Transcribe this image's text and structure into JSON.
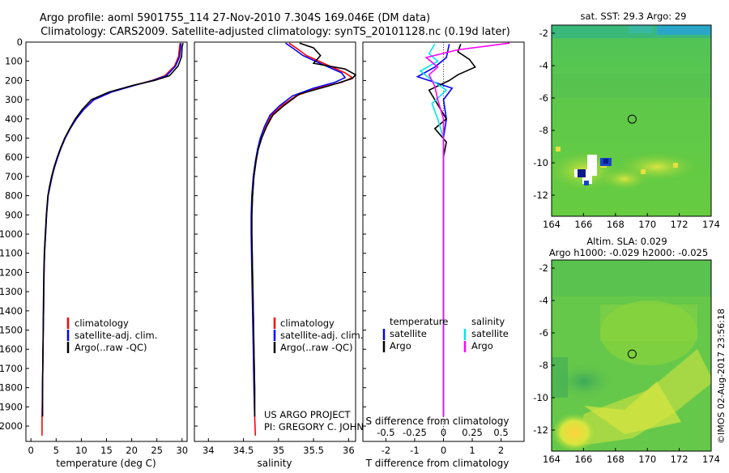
{
  "header": {
    "title_line1": "Argo profile: aoml 5901755_114 27-Nov-2010 7.304S 169.046E (DM data)",
    "title_line2": "Climatology: CARS2009. Satellite-adjusted climatology: synTS_20101128.nc (0.19d later)"
  },
  "colors": {
    "climatology": "#ff0000",
    "satellite": "#0000ff",
    "argo": "#000000",
    "sat_salinity": "#00e5ee",
    "argo_salinity": "#ff00ff"
  },
  "credits": {
    "line1": "US ARGO PROJECT",
    "line2": "PI: GREGORY C. JOHNSON"
  },
  "footer": {
    "stamp": "©IMOS 02-Aug-2017 23:56:18"
  },
  "chart_data": [
    {
      "type": "line",
      "title": "",
      "xlabel": "temperature (deg C)",
      "ylabel": "",
      "xlim": [
        -1,
        31
      ],
      "ylim": [
        2080,
        0
      ],
      "xticks": [
        0,
        5,
        10,
        15,
        20,
        25,
        30
      ],
      "yticks": [
        0,
        100,
        200,
        300,
        400,
        500,
        600,
        700,
        800,
        900,
        1000,
        1100,
        1200,
        1300,
        1400,
        1500,
        1600,
        1700,
        1800,
        1900,
        2000
      ],
      "legend": [
        "climatology",
        "satellite-adj. clim.",
        "Argo(..raw -QC)"
      ],
      "legend_position": "lower-left",
      "series": [
        {
          "name": "climatology",
          "color": "#ff0000",
          "x": [
            29.6,
            29.5,
            29.3,
            28.5,
            26.6,
            24,
            20.5,
            16,
            12.5,
            10.5,
            9,
            7.8,
            6.8,
            6,
            5.3,
            4.7,
            4.2,
            3.8,
            3.4,
            3.1,
            2.9,
            2.7,
            2.6,
            2.5,
            2.4,
            2.3,
            2.2,
            2.2,
            2.2
          ],
          "y": [
            5,
            25,
            75,
            125,
            175,
            200,
            225,
            260,
            300,
            350,
            400,
            450,
            500,
            550,
            600,
            650,
            700,
            750,
            800,
            900,
            1000,
            1100,
            1200,
            1400,
            1600,
            1800,
            1950,
            2000,
            2050
          ]
        },
        {
          "name": "satellite-adj. clim.",
          "color": "#0000ff",
          "x": [
            29.8,
            29.7,
            29.5,
            28.7,
            26.9,
            24.2,
            20.6,
            16,
            12.5,
            10.5,
            9,
            7.8,
            6.8,
            6,
            5.3,
            4.7,
            4.2,
            3.8,
            3.4,
            3.1,
            2.9,
            2.7,
            2.6,
            2.5,
            2.4,
            2.3,
            2.3
          ],
          "y": [
            5,
            25,
            75,
            125,
            175,
            200,
            225,
            260,
            300,
            350,
            400,
            450,
            500,
            550,
            600,
            650,
            700,
            750,
            800,
            900,
            1000,
            1100,
            1200,
            1400,
            1600,
            1800,
            1950
          ]
        },
        {
          "name": "Argo(..raw -QC)",
          "color": "#000000",
          "x": [
            30.2,
            30,
            29.9,
            29.2,
            27.5,
            24.5,
            20.3,
            15.5,
            12,
            10.2,
            8.8,
            7.7,
            6.7,
            5.9,
            5.2,
            4.6,
            4.1,
            3.7,
            3.35,
            3.05,
            2.85,
            2.65,
            2.55,
            2.45,
            2.4,
            2.3,
            2.3
          ],
          "y": [
            5,
            25,
            75,
            125,
            175,
            200,
            225,
            260,
            300,
            350,
            400,
            450,
            500,
            550,
            600,
            650,
            700,
            750,
            800,
            900,
            1000,
            1100,
            1200,
            1400,
            1600,
            1800,
            1950
          ]
        }
      ]
    },
    {
      "type": "line",
      "title": "",
      "xlabel": "salinity",
      "ylabel": "",
      "xlim": [
        33.8,
        36.1
      ],
      "ylim": [
        2080,
        0
      ],
      "xticks": [
        34,
        34.5,
        35,
        35.5,
        36
      ],
      "legend": [
        "climatology",
        "satellite-adj. clim.",
        "Argo(..raw -QC)"
      ],
      "legend_position": "lower-right",
      "series": [
        {
          "name": "climatology",
          "color": "#ff0000",
          "x": [
            35.15,
            35.25,
            35.4,
            35.7,
            35.95,
            36.05,
            35.9,
            35.55,
            35.25,
            35.05,
            34.9,
            34.82,
            34.76,
            34.71,
            34.68,
            34.65,
            34.63,
            34.62,
            34.62,
            34.63,
            34.64,
            34.65,
            34.66,
            34.66,
            34.67
          ],
          "y": [
            5,
            30,
            70,
            120,
            160,
            185,
            210,
            240,
            280,
            330,
            380,
            440,
            500,
            560,
            620,
            700,
            800,
            900,
            1000,
            1200,
            1400,
            1600,
            1800,
            1950,
            2050
          ]
        },
        {
          "name": "satellite-adj. clim.",
          "color": "#0000ff",
          "x": [
            35.1,
            35.2,
            35.35,
            35.65,
            35.9,
            35.95,
            35.8,
            35.5,
            35.2,
            35.02,
            34.88,
            34.8,
            34.74,
            34.7,
            34.67,
            34.64,
            34.62,
            34.61,
            34.61,
            34.62,
            34.63,
            34.64,
            34.65,
            34.66
          ],
          "y": [
            5,
            30,
            70,
            120,
            160,
            185,
            210,
            240,
            280,
            330,
            380,
            440,
            500,
            560,
            620,
            700,
            800,
            900,
            1000,
            1200,
            1400,
            1600,
            1800,
            1950
          ]
        },
        {
          "name": "Argo(..raw -QC)",
          "color": "#000000",
          "x": [
            35.3,
            35.5,
            35.6,
            35.5,
            35.95,
            36.1,
            36.05,
            35.7,
            35.3,
            35.08,
            34.92,
            34.83,
            34.76,
            34.71,
            34.68,
            34.65,
            34.63,
            34.62,
            34.62,
            34.63,
            34.64,
            34.65,
            34.66,
            34.66
          ],
          "y": [
            5,
            30,
            70,
            110,
            140,
            170,
            190,
            230,
            270,
            330,
            380,
            440,
            500,
            560,
            620,
            700,
            800,
            900,
            1000,
            1200,
            1400,
            1600,
            1800,
            1950
          ]
        }
      ]
    },
    {
      "type": "line",
      "title": "",
      "xlabel": "T difference from climatology",
      "xlabel_top": "S difference from climatology",
      "ylabel": "",
      "xlim": [
        -2.8,
        2.8
      ],
      "ylim": [
        2080,
        0
      ],
      "xticks": [
        -2,
        -1,
        0,
        1,
        2
      ],
      "xticks_top": [
        "-0.5",
        "-0.25",
        "0",
        "0.25",
        "0.5"
      ],
      "legend_groups": [
        {
          "heading": "temperature",
          "items": [
            "satellite",
            "Argo"
          ]
        },
        {
          "heading": "salinity",
          "items": [
            "satellite",
            "Argo"
          ]
        }
      ],
      "series": [
        {
          "name": "temperature satellite",
          "color": "#0000ff",
          "x": [
            0.2,
            0.1,
            -0.3,
            -0.9,
            -0.3,
            0.3,
            0,
            0.1,
            0,
            0,
            0,
            0,
            0,
            0,
            0
          ],
          "y": [
            10,
            80,
            130,
            180,
            210,
            240,
            300,
            400,
            500,
            600,
            800,
            1000,
            1400,
            1800,
            1950
          ]
        },
        {
          "name": "temperature Argo",
          "color": "#000000",
          "x": [
            0.6,
            0.5,
            0.9,
            1.1,
            0.5,
            0.2,
            -0.5,
            -0.3,
            -0.1,
            0.1,
            -0.3,
            0.1,
            0,
            0,
            0,
            0,
            0
          ],
          "y": [
            10,
            50,
            90,
            130,
            170,
            200,
            250,
            300,
            350,
            400,
            450,
            520,
            600,
            800,
            1200,
            1600,
            1950
          ]
        },
        {
          "name": "salinity satellite",
          "color": "#00e5ee",
          "x": [
            -0.3,
            -0.5,
            -0.2,
            -0.8,
            -0.4,
            0.1,
            -0.4,
            -0.2,
            0,
            0,
            0,
            0
          ],
          "y": [
            10,
            60,
            100,
            150,
            200,
            250,
            320,
            400,
            500,
            700,
            1200,
            1950
          ]
        },
        {
          "name": "salinity Argo",
          "color": "#ff00ff",
          "x": [
            2.3,
            0.5,
            -0.6,
            -0.2,
            -0.5,
            -0.3,
            -0.2,
            0,
            0,
            0,
            0
          ],
          "y": [
            5,
            40,
            80,
            130,
            170,
            230,
            300,
            400,
            500,
            800,
            1950
          ]
        }
      ]
    },
    {
      "type": "heatmap",
      "title": "sat. SST: 29.3 Argo: 29",
      "xlabel": "",
      "ylabel": "",
      "xlim": [
        164,
        174
      ],
      "ylim": [
        -13.3,
        -1.5
      ],
      "xticks": [
        164,
        166,
        168,
        170,
        172,
        174
      ],
      "yticks": [
        -2,
        -4,
        -6,
        -8,
        -10,
        -12
      ],
      "marker": {
        "lon": 169.046,
        "lat": -7.304
      }
    },
    {
      "type": "heatmap",
      "title": "Altim. SLA: 0.029",
      "subtitle": "Argo h1000: -0.029 h2000: -0.025",
      "xlabel": "",
      "ylabel": "",
      "xlim": [
        164,
        174
      ],
      "ylim": [
        -13.3,
        -1.5
      ],
      "xticks": [
        164,
        166,
        168,
        170,
        172,
        174
      ],
      "yticks": [
        -2,
        -4,
        -6,
        -8,
        -10,
        -12
      ],
      "marker": {
        "lon": 169.046,
        "lat": -7.304
      }
    }
  ]
}
